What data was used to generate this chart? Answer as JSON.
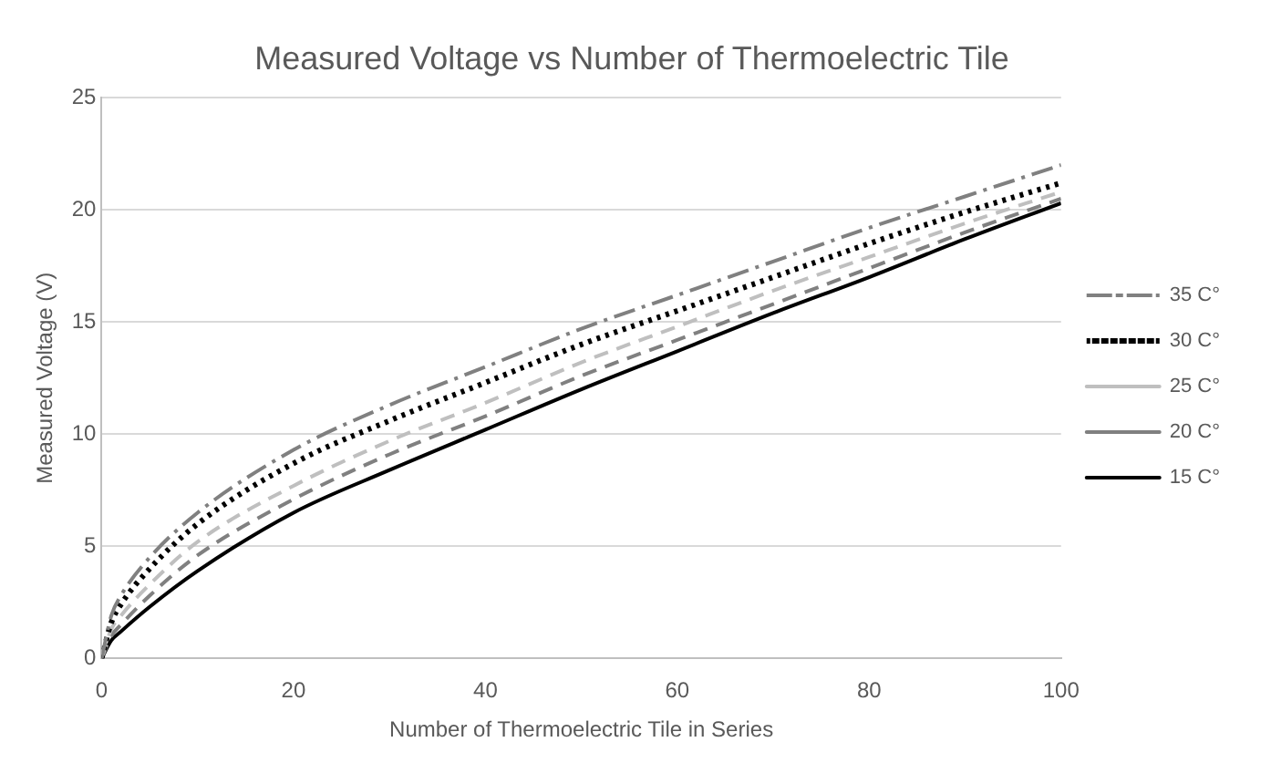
{
  "chart_data": {
    "type": "line",
    "title": "Measured Voltage vs Number of Thermoelectric Tile",
    "xlabel": "Number of Thermoelectric Tile in Series",
    "ylabel": "Measured Voltage (V)",
    "x": [
      0,
      1,
      2,
      5,
      10,
      20,
      30,
      40,
      50,
      60,
      70,
      80,
      90,
      100
    ],
    "series": [
      {
        "name": "35 C°",
        "color": "#808080",
        "line_style": "dashdot",
        "values": [
          0,
          1.9,
          2.8,
          4.5,
          6.5,
          9.3,
          11.3,
          13,
          14.7,
          16.2,
          17.7,
          19.2,
          20.6,
          22
        ]
      },
      {
        "name": "30 C°",
        "color": "#000000",
        "line_style": "dotted",
        "values": [
          0,
          1.6,
          2.4,
          4.0,
          6.0,
          8.7,
          10.6,
          12.3,
          14,
          15.5,
          17,
          18.5,
          19.9,
          21.2
        ]
      },
      {
        "name": "25 C°",
        "color": "#bfbfbf",
        "line_style": "dashed",
        "values": [
          0,
          1.3,
          1.9,
          3.3,
          5.2,
          7.7,
          9.7,
          11.4,
          13.2,
          14.8,
          16.4,
          17.9,
          19.4,
          20.8
        ]
      },
      {
        "name": "20 C°",
        "color": "#808080",
        "line_style": "dashed",
        "values": [
          0,
          1.0,
          1.5,
          2.8,
          4.6,
          7.1,
          9.1,
          10.8,
          12.6,
          14.2,
          15.8,
          17.4,
          19,
          20.5
        ]
      },
      {
        "name": "15 C°",
        "color": "#000000",
        "line_style": "solid",
        "values": [
          0,
          0.8,
          1.2,
          2.3,
          3.9,
          6.5,
          8.4,
          10.2,
          12,
          13.7,
          15.4,
          17,
          18.7,
          20.3
        ]
      }
    ],
    "xlim": [
      0,
      100
    ],
    "xticks": [
      0,
      20,
      40,
      60,
      80,
      100
    ],
    "ylim": [
      0,
      25
    ],
    "yticks": [
      0,
      5,
      10,
      15,
      20,
      25
    ],
    "grid": "y",
    "legend": "right",
    "marker": "none"
  }
}
